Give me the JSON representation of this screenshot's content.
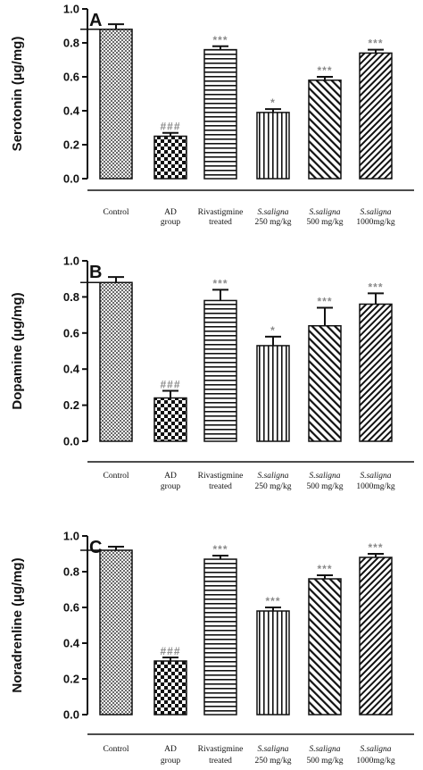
{
  "chart_data": [
    {
      "type": "bar",
      "panel_label": "A",
      "ylabel": "Serotonin (µg/mg)",
      "ylim": [
        0,
        1.0
      ],
      "yticks": [
        "0.0",
        "0.2",
        "0.4",
        "0.6",
        "0.8",
        "1.0"
      ],
      "categories": [
        {
          "line1": "Control",
          "line2": ""
        },
        {
          "line1": "AD",
          "line2": "group"
        },
        {
          "line1": "Rivastigmine",
          "line2": "treated"
        },
        {
          "line1": "S.saligna",
          "line2": "250 mg/kg"
        },
        {
          "line1": "S.saligna",
          "line2": "500 mg/kg"
        },
        {
          "line1": "S.saligna",
          "line2": "1000mg/kg"
        }
      ],
      "values": [
        0.88,
        0.25,
        0.76,
        0.39,
        0.58,
        0.74
      ],
      "errors": [
        0.03,
        0.02,
        0.02,
        0.02,
        0.02,
        0.02
      ],
      "significance": [
        "",
        "###",
        "***",
        "*",
        "***",
        "***"
      ]
    },
    {
      "type": "bar",
      "panel_label": "B",
      "ylabel": "Dopamine (µg/mg)",
      "ylim": [
        0,
        1.0
      ],
      "yticks": [
        "0.0",
        "0.2",
        "0.4",
        "0.6",
        "0.8",
        "1.0"
      ],
      "categories": [
        {
          "line1": "Control",
          "line2": ""
        },
        {
          "line1": "AD",
          "line2": "group"
        },
        {
          "line1": "Rivastigmine",
          "line2": "treated"
        },
        {
          "line1": "S.saligna",
          "line2": "250 mg/kg"
        },
        {
          "line1": "S.saligna",
          "line2": "500 mg/kg"
        },
        {
          "line1": "S.saligna",
          "line2": "1000mg/kg"
        }
      ],
      "values": [
        0.88,
        0.24,
        0.78,
        0.53,
        0.64,
        0.76
      ],
      "errors": [
        0.03,
        0.04,
        0.06,
        0.05,
        0.1,
        0.06
      ],
      "significance": [
        "",
        "###",
        "***",
        "*",
        "***",
        "***"
      ]
    },
    {
      "type": "bar",
      "panel_label": "C",
      "ylabel": "Noradrenline (µg/mg)",
      "ylim": [
        0,
        1.0
      ],
      "yticks": [
        "0.0",
        "0.2",
        "0.4",
        "0.6",
        "0.8",
        "1.0"
      ],
      "categories": [
        {
          "line1": "Control",
          "line2": ""
        },
        {
          "line1": "AD",
          "line2": "group"
        },
        {
          "line1": "Rivastigmine",
          "line2": "treated"
        },
        {
          "line1": "S.saligna",
          "line2": "250 mg/kg"
        },
        {
          "line1": "S.saligna",
          "line2": "500 mg/kg"
        },
        {
          "line1": "S.saligna",
          "line2": "1000mg/kg"
        }
      ],
      "values": [
        0.92,
        0.3,
        0.87,
        0.58,
        0.76,
        0.88
      ],
      "errors": [
        0.02,
        0.02,
        0.02,
        0.02,
        0.02,
        0.02
      ],
      "significance": [
        "",
        "###",
        "***",
        "***",
        "***",
        "***"
      ]
    }
  ]
}
